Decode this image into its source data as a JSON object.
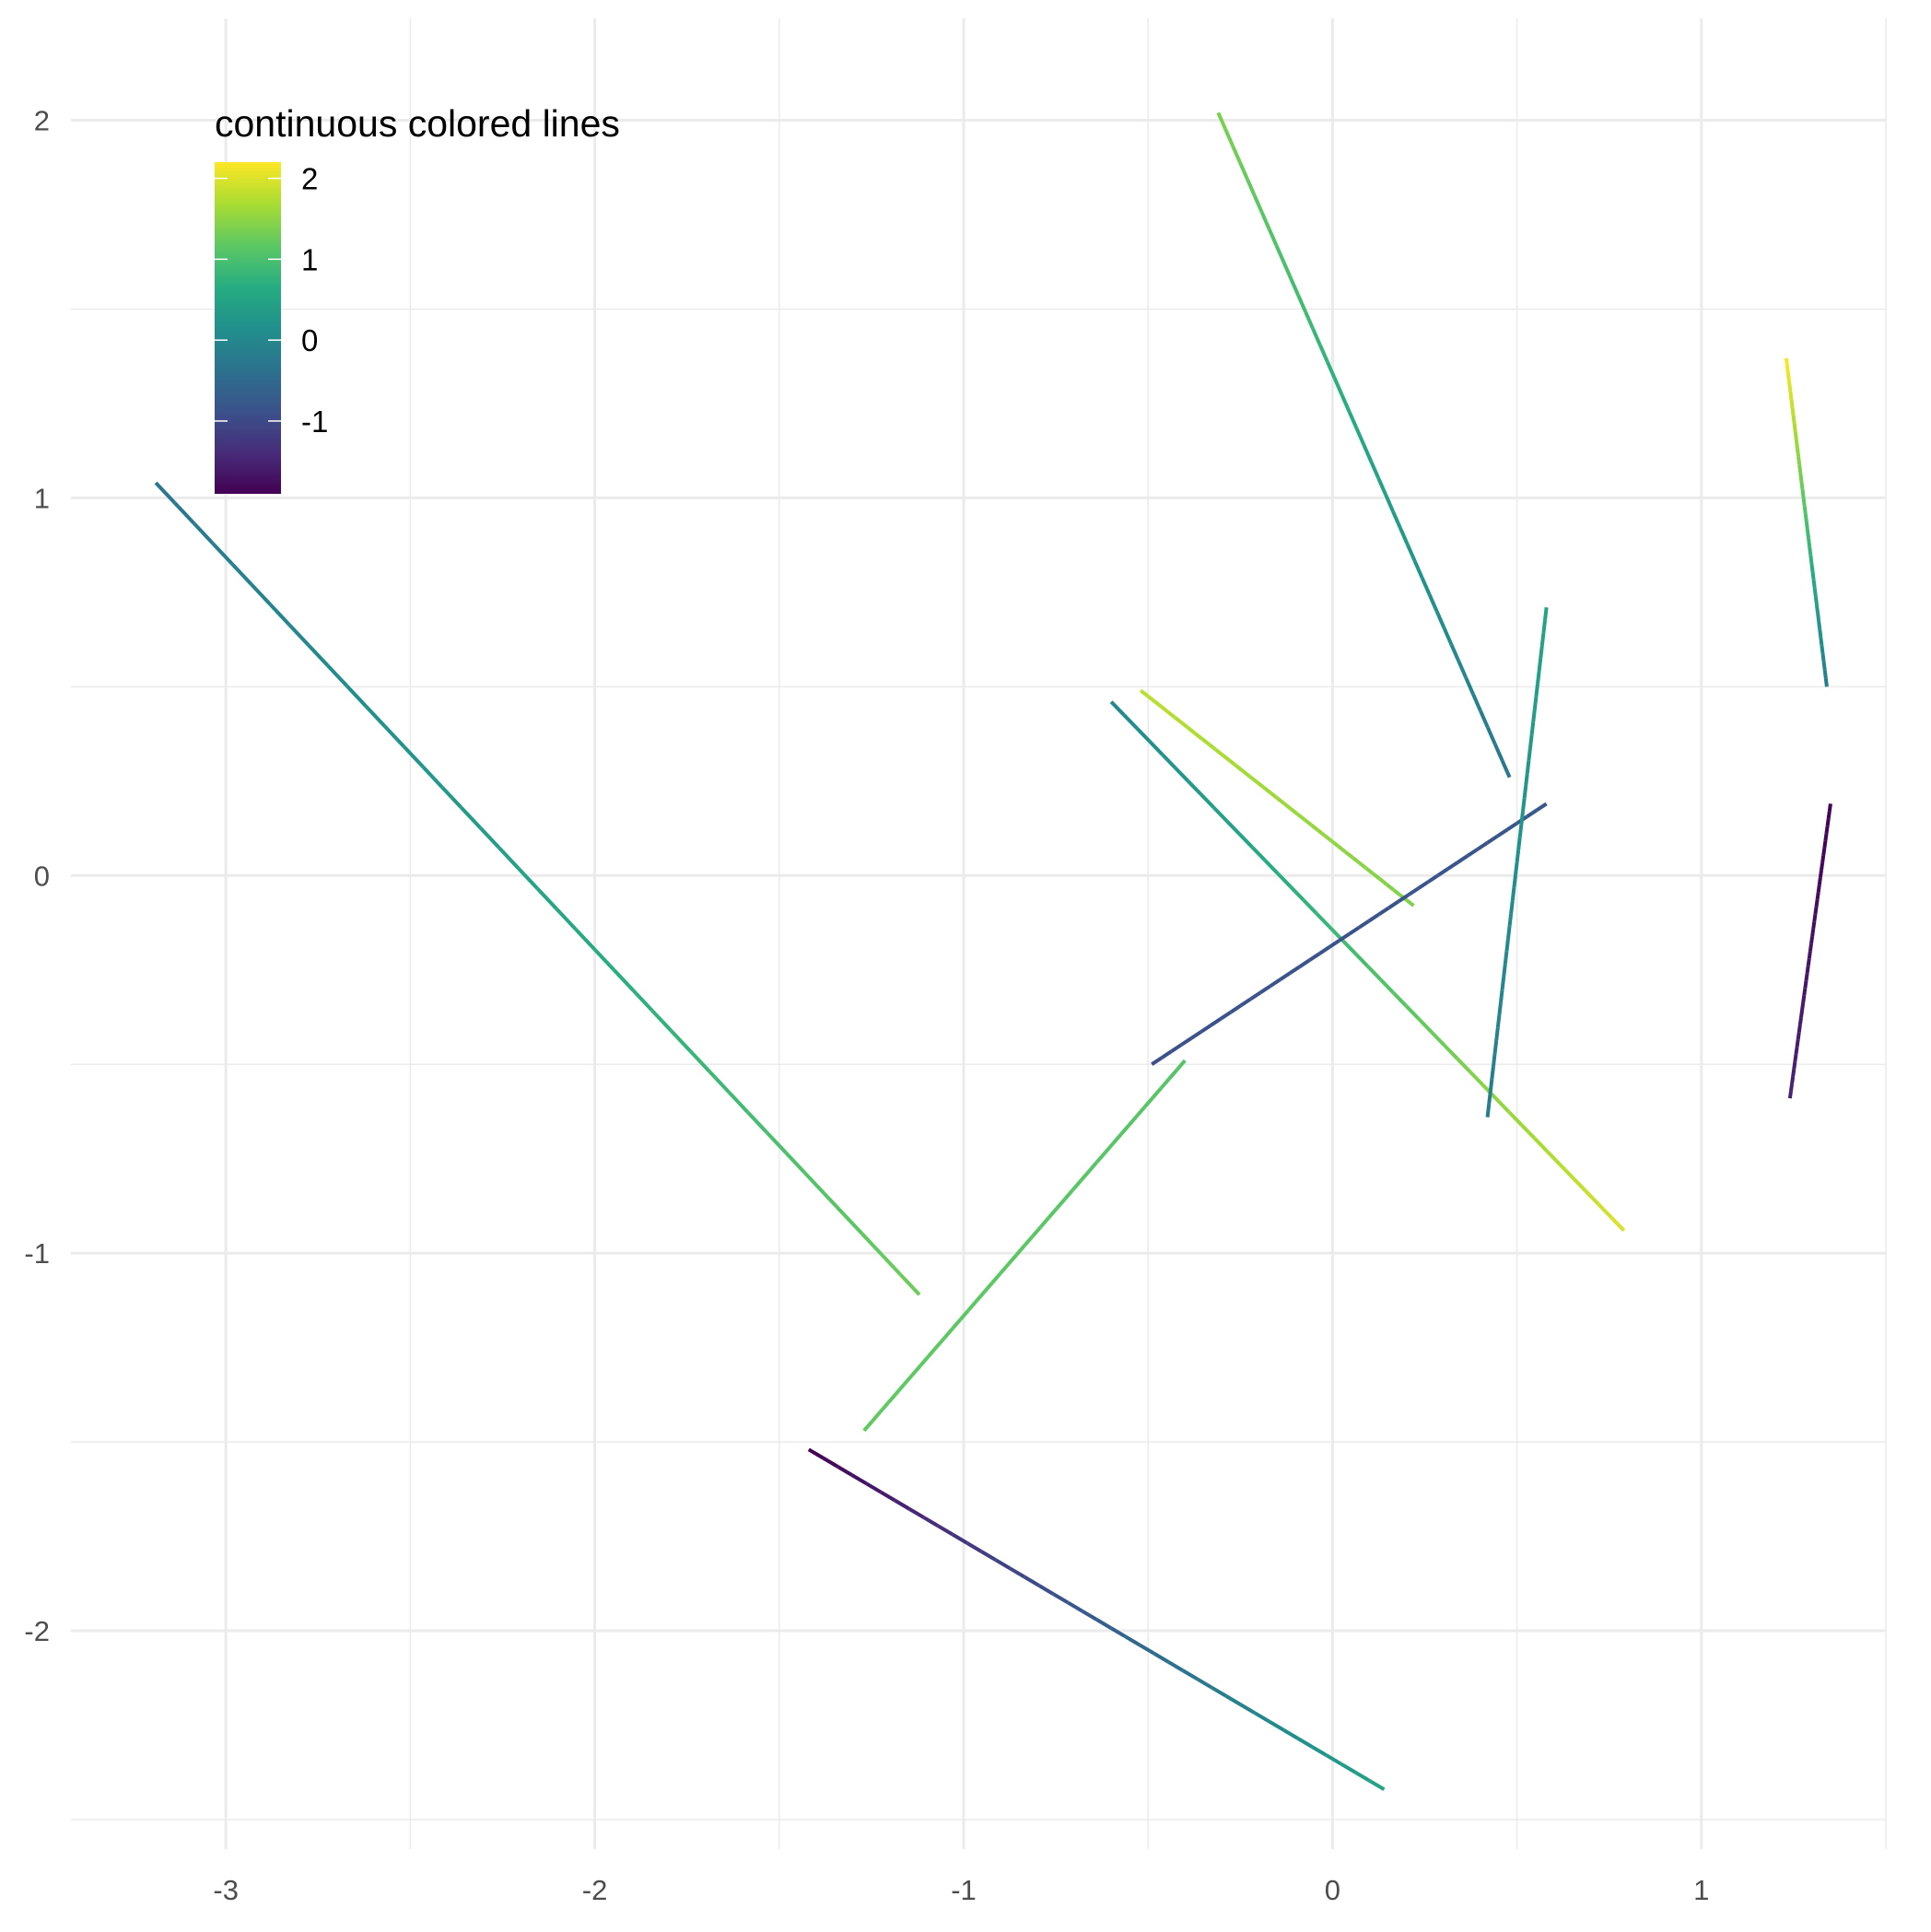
{
  "chart_data": {
    "type": "line",
    "title": "",
    "xlabel": "",
    "ylabel": "",
    "xlim": [
      -3.42,
      1.5
    ],
    "ylim": [
      -2.5,
      2.05
    ],
    "x_major_ticks": [
      -3,
      -2,
      -1,
      0,
      1
    ],
    "x_minor_ticks": [
      -2.5,
      -1.5,
      -0.5,
      0.5,
      1.5
    ],
    "y_major_ticks": [
      -2,
      -1,
      0,
      1,
      2
    ],
    "y_minor_ticks": [
      -2.5,
      -1.5,
      -0.5,
      0.5,
      1.5
    ],
    "x_tick_labels": [
      "-3",
      "-2",
      "-1",
      "0",
      "1"
    ],
    "y_tick_labels": [
      "-2",
      "-1",
      "0",
      "1",
      "2"
    ],
    "grid": true,
    "colormap": "viridis",
    "legend": {
      "title": "continuous colored lines",
      "placement": "top-left",
      "range": [
        -1.9,
        2.2
      ],
      "ticks": [
        2,
        1,
        0,
        -1
      ],
      "labels": [
        "2",
        "1",
        "0",
        "-1"
      ]
    },
    "series": [
      {
        "x0": -3.19,
        "y0": 1.04,
        "x1": -1.12,
        "y1": -1.11,
        "c0": -0.3,
        "c1": 1.3
      },
      {
        "x0": -1.42,
        "y0": -1.52,
        "x1": 0.14,
        "y1": -2.42,
        "c0": -1.9,
        "c1": 0.5
      },
      {
        "x0": -1.27,
        "y0": -1.47,
        "x1": -0.4,
        "y1": -0.49,
        "c0": 1.2,
        "c1": 1.1
      },
      {
        "x0": -0.6,
        "y0": 0.46,
        "x1": 0.79,
        "y1": -0.94,
        "c0": 0.0,
        "c1": 2.0
      },
      {
        "x0": -0.52,
        "y0": 0.49,
        "x1": 0.22,
        "y1": -0.08,
        "c0": 1.8,
        "c1": 1.4
      },
      {
        "x0": -0.49,
        "y0": -0.5,
        "x1": 0.58,
        "y1": 0.19,
        "c0": -0.9,
        "c1": -0.8
      },
      {
        "x0": -0.31,
        "y0": 2.02,
        "x1": 0.48,
        "y1": 0.26,
        "c0": 1.4,
        "c1": -0.3
      },
      {
        "x0": 0.42,
        "y0": -0.64,
        "x1": 0.58,
        "y1": 0.71,
        "c0": -0.2,
        "c1": 0.5
      },
      {
        "x0": 1.23,
        "y0": 1.37,
        "x1": 1.34,
        "y1": 0.5,
        "c0": 2.2,
        "c1": -0.2
      },
      {
        "x0": 1.24,
        "y0": -0.59,
        "x1": 1.35,
        "y1": 0.19,
        "c0": -1.5,
        "c1": -1.9
      }
    ]
  }
}
